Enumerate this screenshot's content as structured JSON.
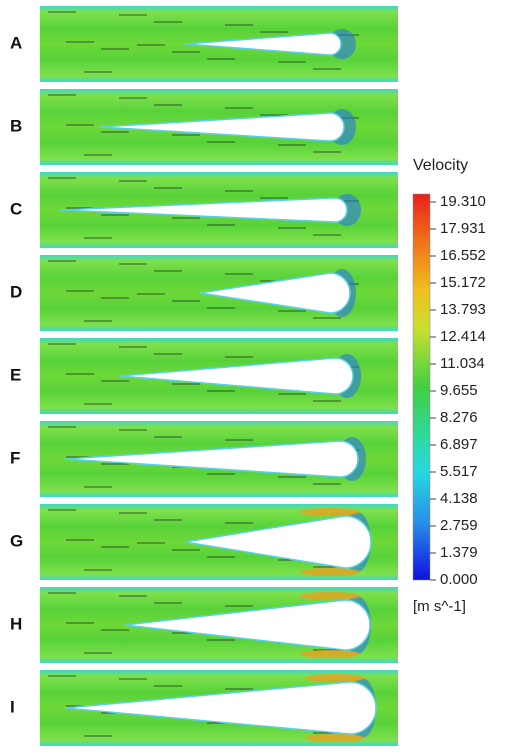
{
  "panels": [
    {
      "label": "A"
    },
    {
      "label": "B"
    },
    {
      "label": "C"
    },
    {
      "label": "D"
    },
    {
      "label": "E"
    },
    {
      "label": "F"
    },
    {
      "label": "G"
    },
    {
      "label": "H"
    },
    {
      "label": "I"
    }
  ],
  "colorbar": {
    "title": "Velocity",
    "unit": "[m s^-1]",
    "ticks": [
      {
        "value": 19.31,
        "label": "19.310"
      },
      17.931,
      16.552,
      15.172,
      13.793,
      12.414,
      11.034,
      9.655,
      8.276,
      6.897,
      5.517,
      4.138,
      2.759,
      1.379,
      {
        "value": 0,
        "label": "0.000"
      }
    ]
  }
}
